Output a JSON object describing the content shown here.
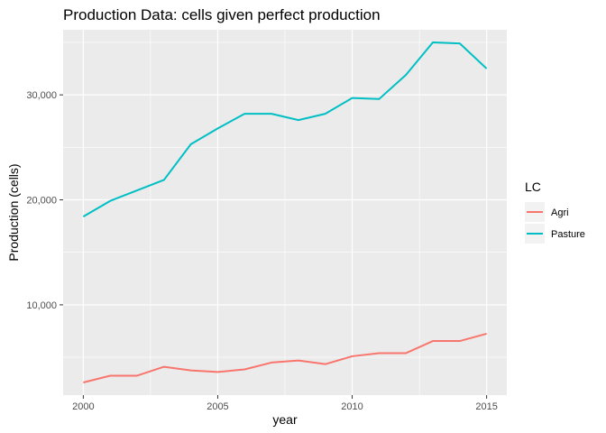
{
  "chart_data": {
    "type": "line",
    "title": "Production Data: cells given perfect production",
    "xlabel": "year",
    "ylabel": "Production (cells)",
    "x": [
      2000,
      2001,
      2002,
      2003,
      2004,
      2005,
      2006,
      2007,
      2008,
      2009,
      2010,
      2011,
      2012,
      2013,
      2014,
      2015
    ],
    "xticks": [
      2000,
      2005,
      2010,
      2015
    ],
    "xtick_labels": [
      "2000",
      "2005",
      "2010",
      "2015"
    ],
    "xlim": [
      1999.25,
      2015.75
    ],
    "yticks": [
      10000,
      20000,
      30000
    ],
    "ytick_labels": [
      "10,000",
      "20,000",
      "30,000"
    ],
    "ylim": [
      1400,
      36200
    ],
    "grid": true,
    "legend": {
      "title": "LC",
      "placement": "right"
    },
    "series": [
      {
        "name": "Agri",
        "color": "#f8766d",
        "values": [
          2600,
          3250,
          3250,
          4100,
          3750,
          3600,
          3850,
          4500,
          4700,
          4350,
          5100,
          5400,
          5400,
          6550,
          6550,
          7250
        ]
      },
      {
        "name": "Pasture",
        "color": "#00bfc4",
        "values": [
          18400,
          19900,
          20900,
          21900,
          25300,
          26800,
          28200,
          28200,
          27600,
          28200,
          29700,
          29600,
          31900,
          35000,
          34900,
          32500
        ]
      }
    ]
  }
}
